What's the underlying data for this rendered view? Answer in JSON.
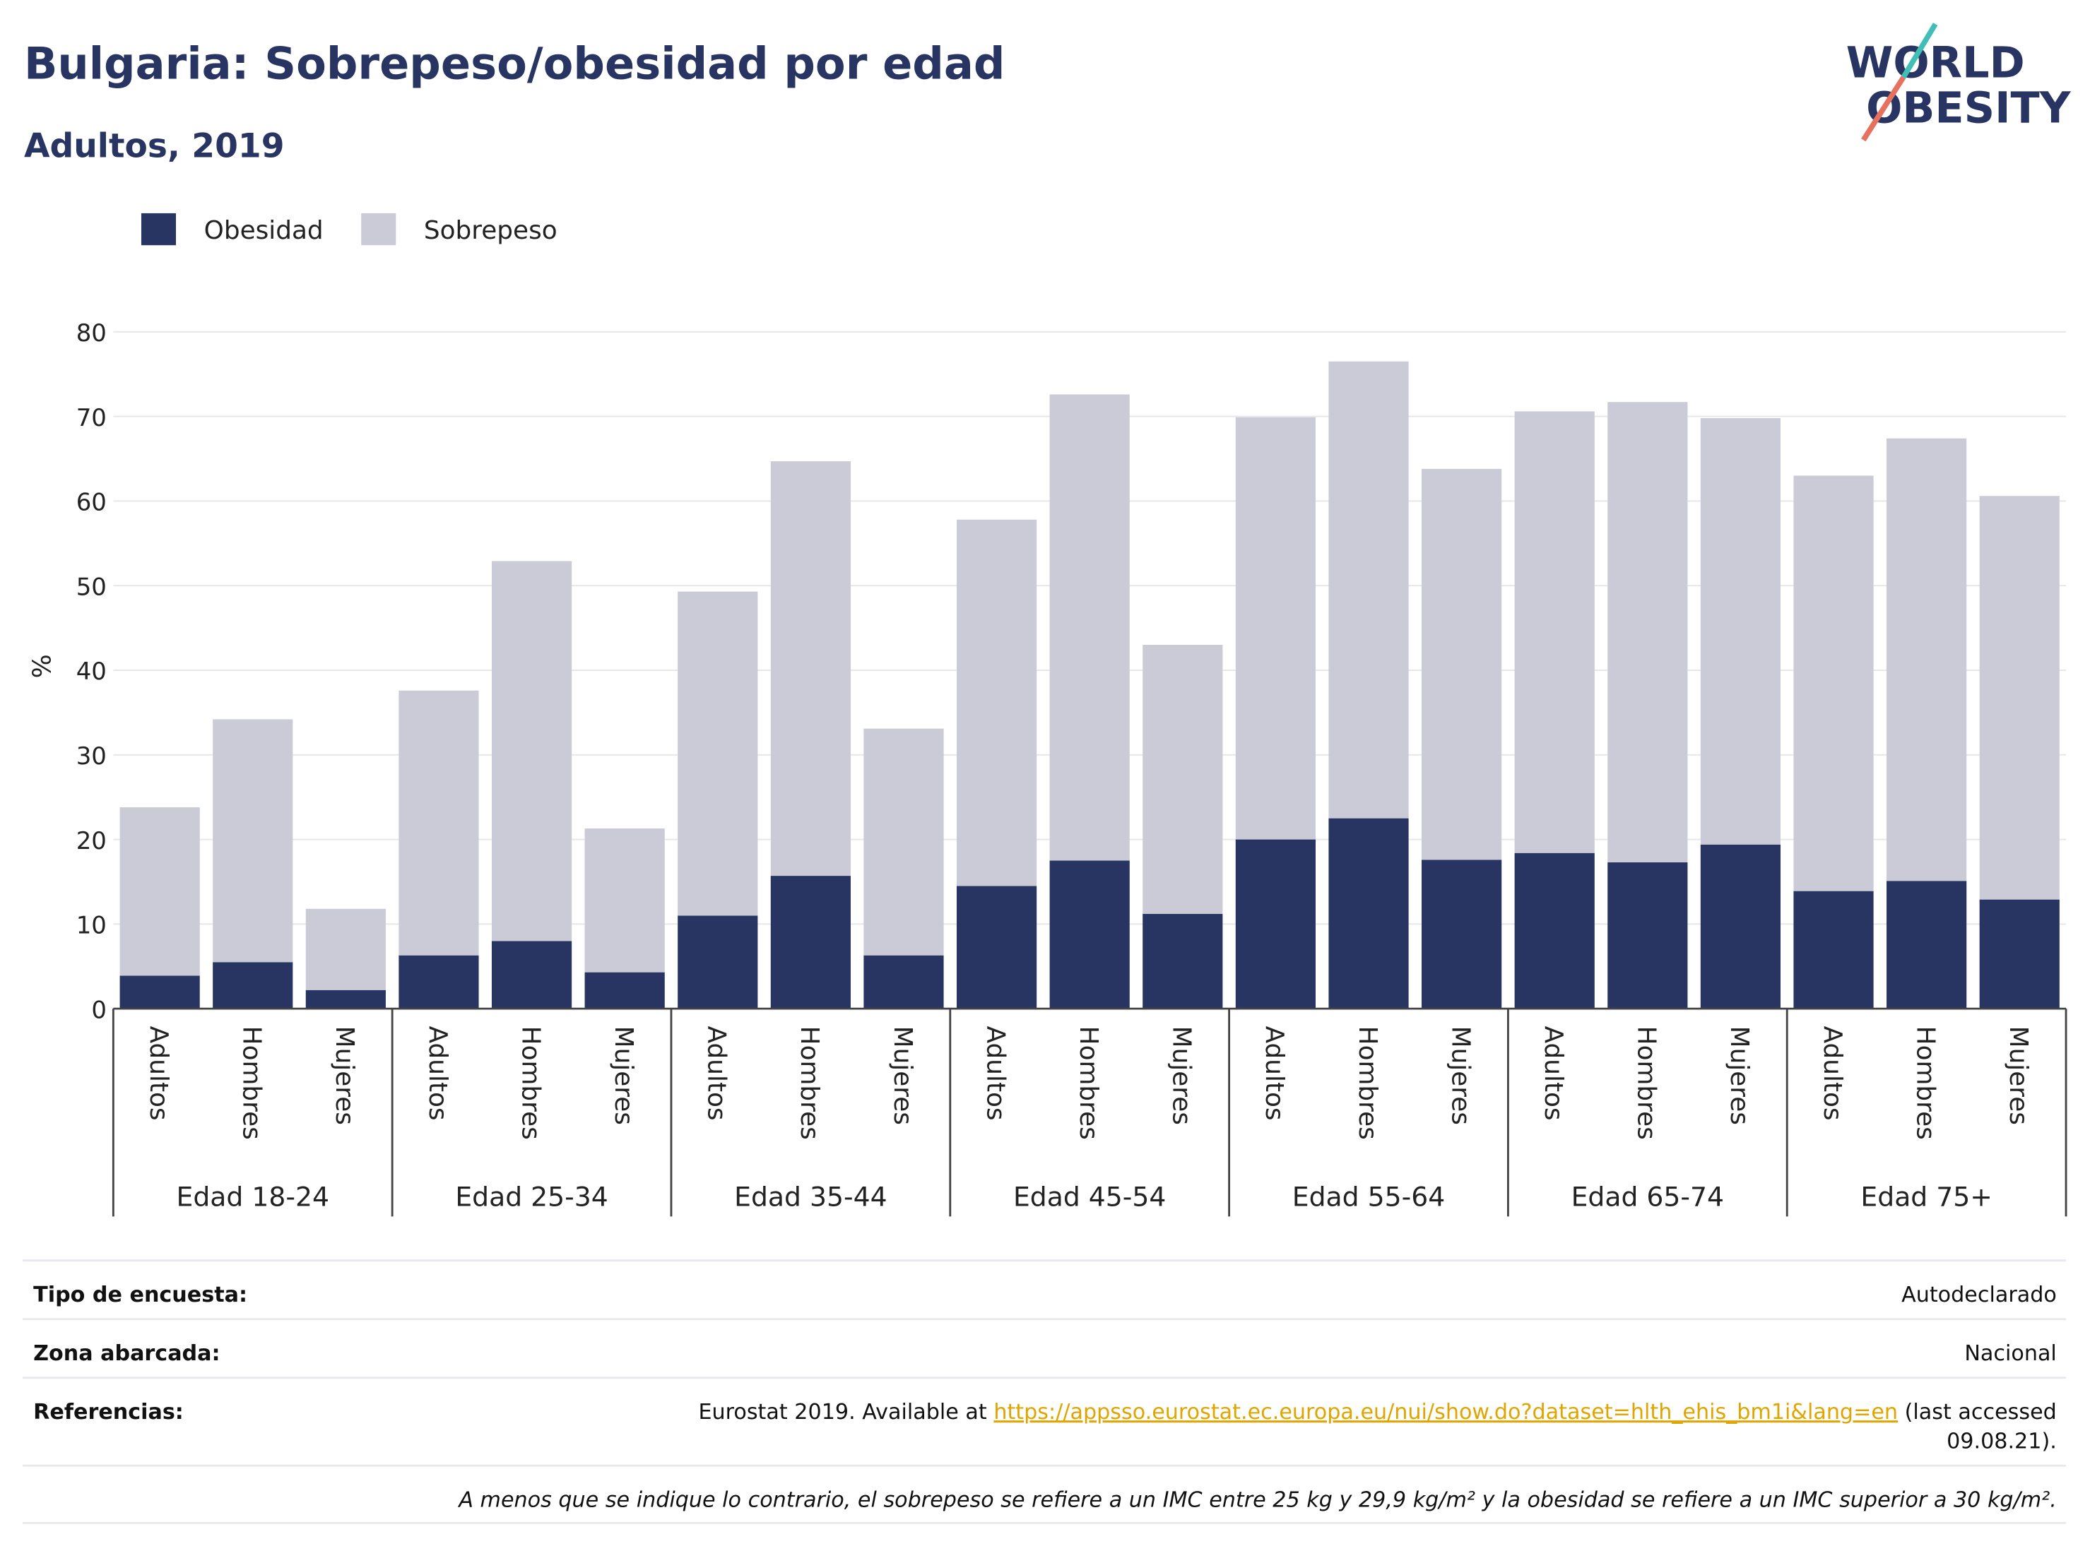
{
  "logo": {
    "line1": "WORLD",
    "line2": "OBESITY"
  },
  "chart_data": {
    "type": "stacked_bar",
    "title": "Bulgaria: Sobrepeso/obesidad por edad",
    "subtitle": "Adultos, 2019",
    "ylabel": "%",
    "groups": [
      "Edad 18-24",
      "Edad 25-34",
      "Edad 35-44",
      "Edad 45-54",
      "Edad 55-64",
      "Edad 65-74",
      "Edad 75+"
    ],
    "categories": [
      "Adultos",
      "Hombres",
      "Mujeres",
      "Adultos",
      "Hombres",
      "Mujeres",
      "Adultos",
      "Hombres",
      "Mujeres",
      "Adultos",
      "Hombres",
      "Mujeres",
      "Adultos",
      "Hombres",
      "Mujeres",
      "Adultos",
      "Hombres",
      "Mujeres",
      "Adultos",
      "Hombres",
      "Mujeres"
    ],
    "series": [
      {
        "name": "Obesidad",
        "color": "#283563",
        "values": [
          3.9,
          5.5,
          2.2,
          6.3,
          8.0,
          4.3,
          11.0,
          15.7,
          6.3,
          14.5,
          17.5,
          11.2,
          20.0,
          22.5,
          17.6,
          18.4,
          17.3,
          19.4,
          13.9,
          15.1,
          12.9
        ]
      },
      {
        "name": "Sobrepeso",
        "color": "#cacbd6",
        "values": [
          19.9,
          28.7,
          9.6,
          31.3,
          44.9,
          17.0,
          38.3,
          49.0,
          26.8,
          43.3,
          55.1,
          31.8,
          49.9,
          54.0,
          46.2,
          52.2,
          54.4,
          50.4,
          49.1,
          52.3,
          47.7
        ]
      }
    ],
    "ylim": [
      0,
      80
    ],
    "yticks": [
      0,
      10,
      20,
      30,
      40,
      50,
      60,
      70,
      80
    ],
    "grid": true
  },
  "footer": {
    "rows": [
      {
        "label": "Tipo de encuesta:",
        "value": "Autodeclarado"
      },
      {
        "label": "Zona abarcada:",
        "value": "Nacional"
      }
    ],
    "references": {
      "label": "Referencias:",
      "before": "Eurostat 2019. Available at ",
      "link": "https://appsso.eurostat.ec.europa.eu/nui/show.do?dataset=hlth_ehis_bm1i&lang=en",
      "after": " (last accessed",
      "line2": "09.08.21)."
    },
    "note": "A menos que se indique lo contrario, el sobrepeso se refiere a un IMC entre 25 kg y 29,9 kg/m² y la obesidad se refiere a un IMC superior a 30 kg/m²."
  }
}
